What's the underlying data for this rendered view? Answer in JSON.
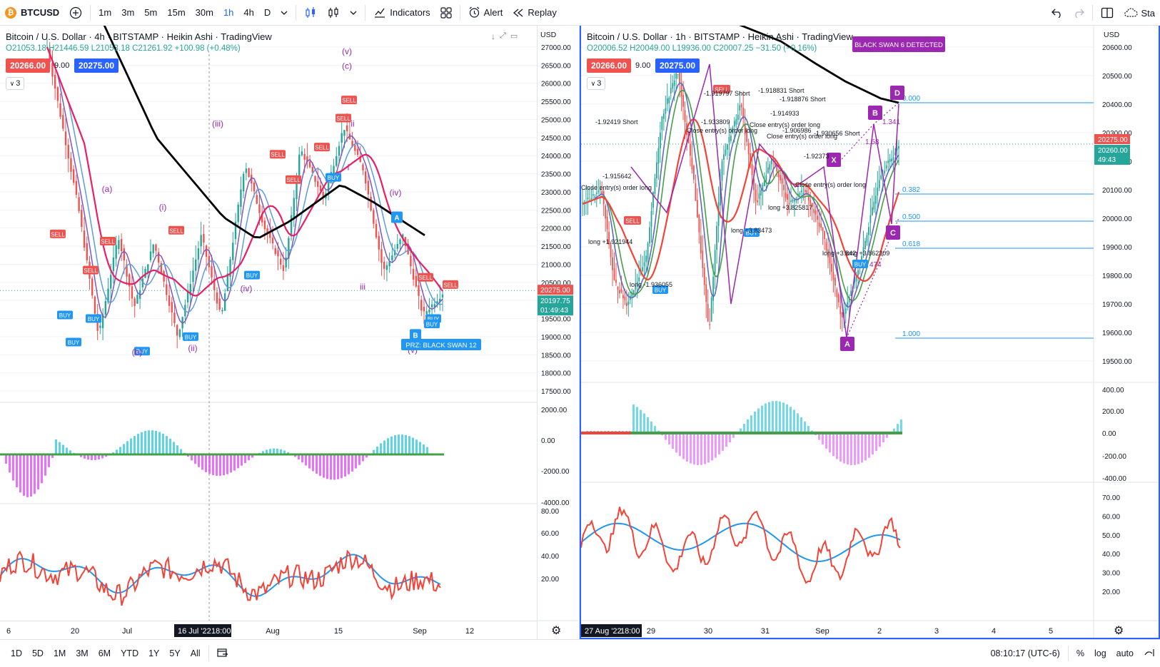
{
  "toolbar": {
    "symbol": "BTCUSD",
    "intervals": [
      "1m",
      "3m",
      "5m",
      "15m",
      "30m",
      "1h",
      "4h",
      "D"
    ],
    "active_interval": "1h",
    "indicators_label": "Indicators",
    "alert_label": "Alert",
    "replay_label": "Replay",
    "right_truncated": "Sta"
  },
  "left_chart": {
    "title": "Bitcoin / U.S. Dollar · 4h · BITSTAMP · Heikin Ashi · TradingView",
    "ohlc": "O21053.18 H21446.59 L21053.18 C21261.92 +100.98 (+0.48%)",
    "bid": "20266.00",
    "spread": "9.00",
    "ask": "20275.00",
    "layers": "3",
    "currency": "USD",
    "price_ticks": [
      "27000.00",
      "26500.00",
      "26000.00",
      "25500.00",
      "25000.00",
      "24500.00",
      "24000.00",
      "23500.00",
      "23000.00",
      "22500.00",
      "22000.00",
      "21500.00",
      "21000.00",
      "20500.00",
      "20000.00",
      "19500.00",
      "19000.00",
      "18500.00",
      "18000.00",
      "17500.00"
    ],
    "last_price_tag": "20275.00",
    "cur_price_tag": "20197.75",
    "countdown_tag": "01:49:43",
    "osc_ticks": [
      "2000.00",
      "0.00",
      "-2000.00",
      "-4000.00"
    ],
    "rsi_ticks": [
      "80.00",
      "60.00",
      "40.00",
      "20.00"
    ],
    "dates": [
      "6",
      "20",
      "Jul",
      "Aug",
      "15",
      "Sep",
      "12"
    ],
    "cursor_date": "16 Jul '22",
    "cursor_time": "18:00",
    "wave_labels": [
      "(a)",
      "(b)",
      "(i)",
      "(ii)",
      "(iii)",
      "(iv)",
      "(v)",
      "(c)",
      "ii",
      "(iv)",
      "iii",
      "(v)",
      "i"
    ],
    "prz_label": "PRZ: BLACK SWAN 12",
    "point_a": "A",
    "point_b": "B"
  },
  "right_chart": {
    "title": "Bitcoin / U.S. Dollar · 1h · BITSTAMP · Heikin Ashi · TradingView",
    "ohlc": "O20006.52 H20049.00 L19936.00 C20007.25 −31.50 (−0.16%)",
    "bid": "20266.00",
    "spread": "9.00",
    "ask": "20275.00",
    "layers": "3",
    "currency": "USD",
    "price_ticks": [
      "20600.00",
      "20500.00",
      "20400.00",
      "20300.00",
      "20200.00",
      "20100.00",
      "20000.00",
      "19900.00",
      "19800.00",
      "19700.00",
      "19600.00",
      "19500.00"
    ],
    "last_price_tag": "20275.00",
    "cur_price_tag": "20260.00",
    "countdown_tag": "49:43",
    "osc_ticks": [
      "400.00",
      "200.00",
      "0.00",
      "-200.00",
      "-400.00"
    ],
    "rsi_ticks": [
      "70.00",
      "60.00",
      "50.00",
      "40.00",
      "30.00",
      "20.00"
    ],
    "dates": [
      "29",
      "30",
      "31",
      "Sep",
      "2",
      "3",
      "4",
      "5"
    ],
    "cursor_date": "27 Aug '22",
    "cursor_time": "18:00",
    "black_swan": "BLACK SWAN 6 DETECTED",
    "fib_levels": [
      "0.000",
      "0.382",
      "0.500",
      "0.618",
      "1.000"
    ],
    "pattern_points": [
      "X",
      "A",
      "B",
      "C",
      "D"
    ],
    "annotations": [
      "-1.92419 Short",
      "-1.915642",
      "-1.919797 Short",
      "-1.918831 Short",
      "-1.918876 Short",
      "-1.914933",
      "-1.933809",
      "-1.906986",
      "-1.930656 Short",
      "-1.92373",
      "long +1.921944",
      "long -1.936055",
      "long +3.83473",
      "long +3.825817",
      "long +3.842",
      "long +3.862309",
      "Close entry(s) order long",
      "Close entry(s) order long",
      "Close entry(s) order long",
      "Close entry(s) order long",
      "Close entry(s) order long"
    ],
    "ratio_1": "1.341",
    "ratio_2": "1.58",
    "ratio_3": "474"
  },
  "bottombar": {
    "ranges": [
      "1D",
      "5D",
      "1M",
      "3M",
      "6M",
      "YTD",
      "1Y",
      "5Y",
      "All"
    ],
    "time": "08:10:17 (UTC-6)",
    "percent": "%",
    "log": "log",
    "auto": "auto"
  },
  "colors": {
    "up": "#26a69a",
    "down": "#ef5350",
    "blue": "#2962ff",
    "purple": "#9c27b0",
    "black_ma": "#000000",
    "rsi_red": "#f44336",
    "rsi_blue": "#2196f3"
  }
}
